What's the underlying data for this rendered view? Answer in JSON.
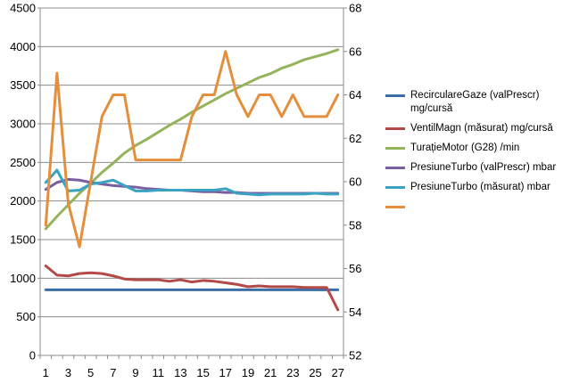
{
  "chart_data": {
    "type": "line",
    "categories": [
      1,
      2,
      3,
      4,
      5,
      6,
      7,
      8,
      9,
      10,
      11,
      12,
      13,
      14,
      15,
      16,
      17,
      18,
      19,
      20,
      21,
      22,
      23,
      24,
      25,
      26,
      27
    ],
    "x_tick_labels": [
      "1",
      "3",
      "5",
      "7",
      "9",
      "11",
      "13",
      "15",
      "17",
      "19",
      "21",
      "23",
      "25",
      "27"
    ],
    "y_left": {
      "min": 0,
      "max": 4500,
      "ticks": [
        "0",
        "500",
        "1000",
        "1500",
        "2000",
        "2500",
        "3000",
        "3500",
        "4000",
        "4500"
      ]
    },
    "y_right": {
      "min": 52,
      "max": 68,
      "ticks": [
        "52",
        "54",
        "56",
        "58",
        "60",
        "62",
        "64",
        "66",
        "68"
      ]
    },
    "grid": true,
    "legend_position": "right",
    "colors": {
      "recirculare": "#3a6ea8",
      "ventil": "#b34a47",
      "turatie": "#93b45b",
      "presiune_prescr": "#7a5fa0",
      "presiune_masurat": "#3aa3c4",
      "unnamed": "#e38f3c",
      "grid": "#8c8c8c",
      "axis": "#8c8c8c"
    },
    "series": [
      {
        "name": "RecirculareGaze (valPrescr) mg/cursă",
        "axis": "left",
        "color_key": "recirculare",
        "values": [
          850,
          850,
          850,
          850,
          850,
          850,
          850,
          850,
          850,
          850,
          850,
          850,
          850,
          850,
          850,
          850,
          850,
          850,
          850,
          850,
          850,
          850,
          850,
          850,
          850,
          850,
          850
        ]
      },
      {
        "name": "VentilMagn (măsurat) mg/cursă",
        "axis": "left",
        "color_key": "ventil",
        "values": [
          1160,
          1040,
          1030,
          1060,
          1070,
          1060,
          1030,
          990,
          980,
          980,
          980,
          960,
          980,
          950,
          970,
          960,
          940,
          920,
          890,
          900,
          890,
          890,
          890,
          880,
          880,
          880,
          590
        ]
      },
      {
        "name": "TurațieMotor (G28) /min",
        "axis": "left",
        "color_key": "turatie",
        "values": [
          1640,
          1800,
          1950,
          2100,
          2230,
          2370,
          2490,
          2620,
          2720,
          2800,
          2890,
          2980,
          3060,
          3150,
          3230,
          3310,
          3390,
          3460,
          3530,
          3600,
          3650,
          3720,
          3770,
          3830,
          3870,
          3910,
          3960
        ]
      },
      {
        "name": "PresiuneTurbo (valPrescr) mbar",
        "axis": "left",
        "color_key": "presiune_prescr",
        "values": [
          2150,
          2240,
          2280,
          2270,
          2240,
          2220,
          2200,
          2190,
          2180,
          2160,
          2150,
          2140,
          2140,
          2130,
          2120,
          2120,
          2110,
          2110,
          2100,
          2100,
          2100,
          2100,
          2100,
          2100,
          2100,
          2100,
          2100
        ]
      },
      {
        "name": "PresiuneTurbo (măsurat) mbar",
        "axis": "left",
        "color_key": "presiune_masurat",
        "values": [
          2240,
          2400,
          2130,
          2140,
          2220,
          2240,
          2270,
          2200,
          2130,
          2130,
          2140,
          2140,
          2140,
          2140,
          2140,
          2140,
          2160,
          2100,
          2090,
          2080,
          2090,
          2090,
          2090,
          2090,
          2100,
          2090,
          2090
        ]
      },
      {
        "name": "",
        "axis": "right",
        "color_key": "unnamed",
        "values": [
          58,
          65,
          59,
          57,
          60,
          63,
          64,
          64,
          61,
          61,
          61,
          61,
          61,
          63,
          64,
          64,
          66,
          64,
          63,
          64,
          64,
          63,
          64,
          63,
          63,
          63,
          64
        ]
      }
    ]
  }
}
